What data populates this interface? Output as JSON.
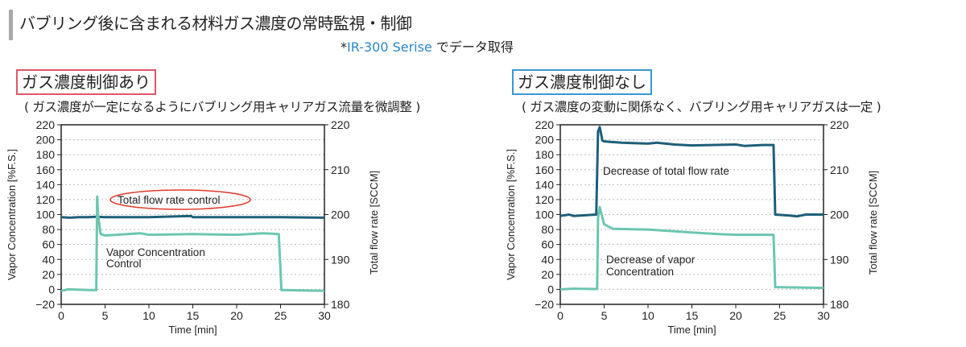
{
  "header": {
    "title": "バブリング後に含まれる材料ガス濃度の常時監視・制御",
    "subtitle_prefix": "*",
    "subtitle_product": "IR-300 Serise",
    "subtitle_suffix": " でデータ取得"
  },
  "panels": [
    {
      "label": "ガス濃度制御あり",
      "note": "( ガス濃度が一定になるようにバブリング用キャリアガス流量を微調整 )"
    },
    {
      "label": "ガス濃度制御なし",
      "note": "( ガス濃度の変動に関係なく、バブリング用キャリアガスは一定 )"
    }
  ],
  "colors": {
    "flow": "#1d5f7a",
    "conc": "#6cc6b0",
    "highlight": "#e03a2a",
    "blue": "#2a86c8"
  },
  "chart_data": [
    {
      "type": "line",
      "xlabel": "Time [min]",
      "ylabel": "Vapor Concentration [%F.S.]",
      "y2label": "Total flow rate [SCCM]",
      "xlim": [
        0,
        30
      ],
      "ylim": [
        -20,
        220
      ],
      "y2lim": [
        180,
        220
      ],
      "xticks": [
        "0",
        "5",
        "10",
        "15",
        "20",
        "25",
        "30"
      ],
      "yticks": [
        "−20",
        "0",
        "20",
        "40",
        "60",
        "80",
        "100",
        "120",
        "140",
        "160",
        "180",
        "200",
        "220"
      ],
      "y2ticks": [
        "180",
        "190",
        "200",
        "210",
        "220"
      ],
      "grid": true,
      "annotations": [
        "Total flow rate control",
        "Vapor Concentration",
        "Control"
      ],
      "series": [
        {
          "name": "Total flow rate",
          "axis": "right",
          "x": [
            0,
            1,
            2,
            3,
            4,
            5,
            10,
            14.8,
            15,
            20,
            25,
            30
          ],
          "values": [
            199.4,
            199.3,
            199.4,
            199.4,
            199.5,
            199.4,
            199.4,
            199.7,
            199.4,
            199.4,
            199.4,
            199.3
          ]
        },
        {
          "name": "Vapor Concentration",
          "axis": "left",
          "x": [
            0,
            0.8,
            3.2,
            4.0,
            4.1,
            4.2,
            4.5,
            5,
            9,
            10,
            15,
            20,
            23,
            24.8,
            25.1,
            25.3,
            30
          ],
          "values": [
            -2,
            0,
            -1,
            -1,
            124,
            100,
            74,
            72,
            75,
            73,
            74,
            73,
            75,
            74,
            -1,
            -1,
            -2
          ]
        }
      ]
    },
    {
      "type": "line",
      "xlabel": "Time [min]",
      "ylabel": "Vapor Concentration [%F.S.]",
      "y2label": "Total flow rate [SCCM]",
      "xlim": [
        0,
        30
      ],
      "ylim": [
        -20,
        220
      ],
      "y2lim": [
        180,
        220
      ],
      "xticks": [
        "0",
        "5",
        "10",
        "15",
        "20",
        "25",
        "30"
      ],
      "yticks": [
        "−20",
        "0",
        "20",
        "40",
        "60",
        "80",
        "100",
        "120",
        "140",
        "160",
        "180",
        "200",
        "220"
      ],
      "y2ticks": [
        "180",
        "190",
        "200",
        "210",
        "220"
      ],
      "grid": true,
      "annotations": [
        "Decrease of total flow rate",
        "Decrease of vapor",
        "Concentration"
      ],
      "series": [
        {
          "name": "Total flow rate",
          "axis": "right",
          "x": [
            0,
            1,
            1.5,
            4.1,
            4.3,
            4.5,
            4.8,
            5,
            7,
            10,
            11,
            13,
            15,
            20,
            21,
            23,
            24.3,
            24.5,
            26,
            27,
            28,
            30
          ],
          "values": [
            199.7,
            200,
            199.7,
            200,
            218.5,
            219.5,
            216.5,
            216.3,
            216,
            215.8,
            216,
            215.6,
            215.4,
            215.6,
            215.3,
            215.5,
            215.5,
            200,
            199.8,
            199.6,
            200,
            200
          ]
        },
        {
          "name": "Vapor Concentration",
          "axis": "left",
          "x": [
            0,
            1.5,
            4.2,
            4.3,
            4.5,
            5,
            6,
            10,
            15,
            18,
            20,
            24.3,
            24.5,
            30
          ],
          "values": [
            0,
            1,
            0.5,
            95,
            110,
            87,
            81,
            80,
            76,
            74,
            73,
            73,
            3,
            2
          ]
        }
      ]
    }
  ]
}
